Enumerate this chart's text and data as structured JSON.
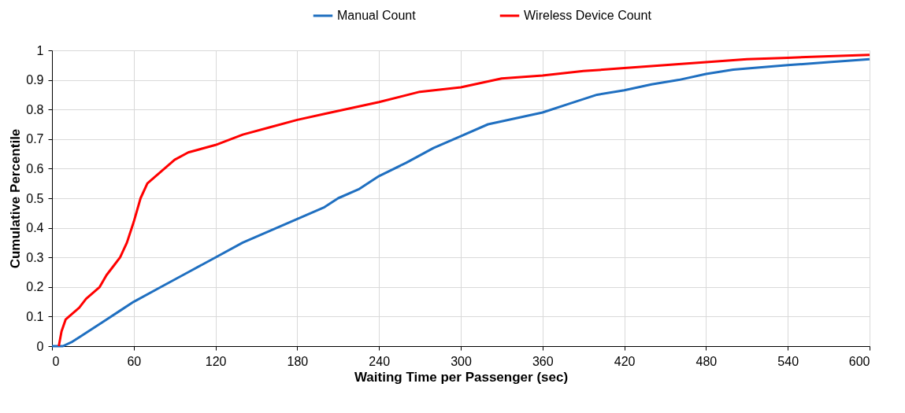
{
  "chart_data": {
    "type": "line",
    "xlabel": "Waiting Time per Passenger (sec)",
    "ylabel": "Cumulative Percentile",
    "xlim": [
      0,
      600
    ],
    "xticks": [
      0,
      60,
      120,
      180,
      240,
      300,
      360,
      420,
      480,
      540,
      600
    ],
    "ylim": [
      0,
      1
    ],
    "yticks": [
      0,
      0.1,
      0.2,
      0.3,
      0.4,
      0.5,
      0.6,
      0.7,
      0.8,
      0.9,
      1
    ],
    "grid": true,
    "legend": "top",
    "marker": "none",
    "line_style": "solid",
    "series": [
      {
        "name": "Manual Count",
        "color": "#1f6fc0",
        "x": [
          0,
          8,
          15,
          20,
          30,
          40,
          50,
          60,
          80,
          100,
          120,
          140,
          160,
          180,
          200,
          210,
          225,
          240,
          260,
          280,
          300,
          320,
          340,
          360,
          380,
          400,
          420,
          440,
          460,
          480,
          500,
          540,
          570,
          600
        ],
        "values": [
          0,
          0,
          0.015,
          0.03,
          0.06,
          0.09,
          0.12,
          0.15,
          0.2,
          0.25,
          0.3,
          0.35,
          0.39,
          0.43,
          0.47,
          0.5,
          0.53,
          0.575,
          0.62,
          0.67,
          0.71,
          0.75,
          0.77,
          0.79,
          0.82,
          0.85,
          0.865,
          0.885,
          0.9,
          0.92,
          0.935,
          0.95,
          0.96,
          0.97
        ]
      },
      {
        "name": "Wireless Device Count",
        "color": "#ff0000",
        "x": [
          5,
          7,
          10,
          15,
          20,
          25,
          30,
          35,
          40,
          45,
          50,
          55,
          60,
          65,
          70,
          80,
          90,
          100,
          120,
          140,
          160,
          180,
          200,
          220,
          240,
          270,
          300,
          330,
          360,
          390,
          420,
          450,
          480,
          510,
          540,
          570,
          600
        ],
        "values": [
          0,
          0.05,
          0.09,
          0.11,
          0.13,
          0.16,
          0.18,
          0.2,
          0.24,
          0.27,
          0.3,
          0.35,
          0.42,
          0.5,
          0.55,
          0.59,
          0.63,
          0.655,
          0.68,
          0.715,
          0.74,
          0.765,
          0.785,
          0.805,
          0.825,
          0.86,
          0.875,
          0.905,
          0.915,
          0.93,
          0.94,
          0.95,
          0.96,
          0.97,
          0.975,
          0.98,
          0.985
        ]
      }
    ]
  }
}
